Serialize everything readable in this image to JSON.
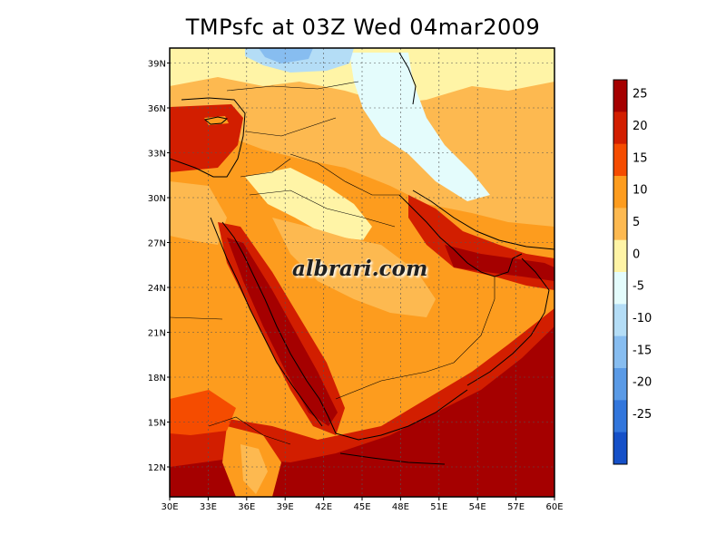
{
  "title": "TMPsfc at 03Z Wed 04mar2009",
  "watermark": "albrari.com",
  "lon_ticks": [
    "30E",
    "33E",
    "36E",
    "39E",
    "42E",
    "45E",
    "48E",
    "51E",
    "54E",
    "57E",
    "60E"
  ],
  "lat_ticks": [
    "12N",
    "15N",
    "18N",
    "21N",
    "24N",
    "27N",
    "30N",
    "33N",
    "36N",
    "39N"
  ],
  "colorbar": {
    "labels": [
      "25",
      "20",
      "15",
      "10",
      "5",
      "0",
      "-5",
      "-10",
      "-15",
      "-20",
      "-25"
    ],
    "colors": [
      "#a50000",
      "#d21e00",
      "#f54c00",
      "#fd9c1e",
      "#fdb950",
      "#fff4a6",
      "#e4fcfc",
      "#b4ddf6",
      "#87bdf0",
      "#5a9ae6",
      "#3276dc",
      "#1550c8"
    ]
  },
  "chart_data": {
    "type": "heatmap",
    "title": "TMPsfc at 03Z Wed 04mar2009",
    "xlim": [
      30,
      60
    ],
    "ylim": [
      10,
      40
    ],
    "x_ticks": [
      30,
      33,
      36,
      39,
      42,
      45,
      48,
      51,
      54,
      57,
      60
    ],
    "y_ticks": [
      12,
      15,
      18,
      21,
      24,
      27,
      30,
      33,
      36,
      39
    ],
    "contour_levels": [
      -25,
      -20,
      -15,
      -10,
      -5,
      0,
      5,
      10,
      15,
      20,
      25
    ],
    "grid": true
  }
}
